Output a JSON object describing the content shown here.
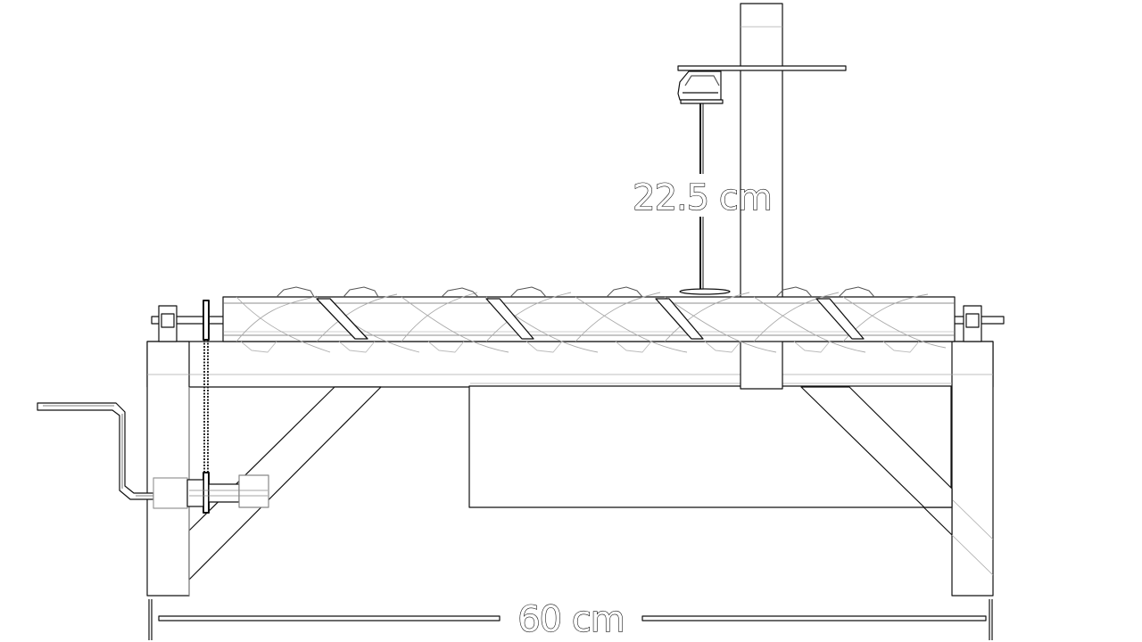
{
  "dimensions": {
    "height_label": "22.5 cm",
    "width_label": "60 cm"
  },
  "colors": {
    "line": "#111111",
    "light_line": "#9a9a9a",
    "background": "#ffffff"
  }
}
